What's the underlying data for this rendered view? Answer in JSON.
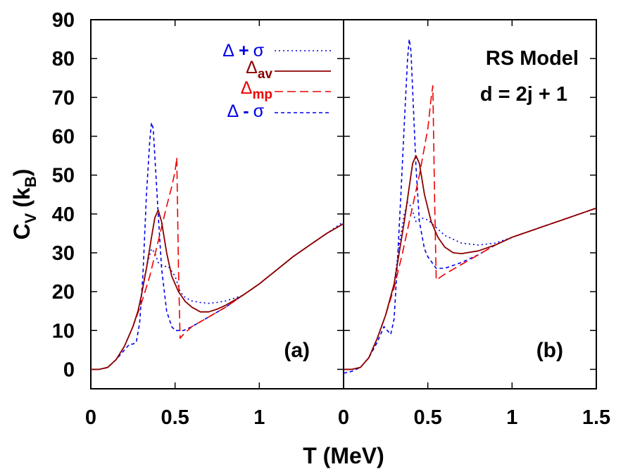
{
  "chart_data": {
    "type": "line",
    "xlabel": "T (MeV)",
    "ylabel_main": "C",
    "ylabel_v_sub": "V",
    "ylabel_paren_open": "(k",
    "ylabel_b_sub": "B",
    "ylabel_paren_close": ")",
    "ylim": [
      -5,
      90
    ],
    "yticks": [
      0,
      10,
      20,
      30,
      40,
      50,
      60,
      70,
      80,
      90
    ],
    "ytick_labels": [
      "0",
      "10",
      "20",
      "30",
      "40",
      "50",
      "60",
      "70",
      "80",
      "90"
    ],
    "panel_a": {
      "label": "(a)",
      "xlim": [
        0,
        1.5
      ],
      "xticks": [
        0,
        0.5,
        1
      ],
      "xtick_labels": [
        "0",
        "0.5",
        "1"
      ]
    },
    "panel_b": {
      "label": "(b)",
      "xlim": [
        0,
        1.5
      ],
      "xticks": [
        0,
        0.5,
        1,
        1.5
      ],
      "xtick_labels": [
        "0",
        "0.5",
        "1",
        "1.5"
      ],
      "annotation_line1": "RS Model",
      "annotation_line2": "d = 2j + 1"
    },
    "legend": [
      {
        "key": "plus",
        "symbol": "Δ",
        "op": "+",
        "tail": "σ",
        "sub": "",
        "color": "#0000e6",
        "dash": "2,4",
        "width": 1.6
      },
      {
        "key": "av",
        "symbol": "Δ",
        "op": "",
        "tail": "",
        "sub": "av",
        "color": "#8b0000",
        "dash": "",
        "width": 1.8
      },
      {
        "key": "mp",
        "symbol": "Δ",
        "op": "",
        "tail": "",
        "sub": "mp",
        "color": "#ee0000",
        "dash": "12,6",
        "width": 1.6
      },
      {
        "key": "minus",
        "symbol": "Δ",
        "op": "-",
        "tail": "σ",
        "sub": "",
        "color": "#0000e6",
        "dash": "5,4",
        "width": 1.6
      }
    ],
    "series": {
      "a": {
        "plus": [
          [
            0,
            0
          ],
          [
            0.05,
            0
          ],
          [
            0.1,
            0.5
          ],
          [
            0.15,
            2.5
          ],
          [
            0.2,
            6
          ],
          [
            0.25,
            11
          ],
          [
            0.28,
            15
          ],
          [
            0.3,
            19
          ],
          [
            0.32,
            24
          ],
          [
            0.34,
            28
          ],
          [
            0.36,
            31
          ],
          [
            0.38,
            30
          ],
          [
            0.4,
            27.5
          ],
          [
            0.43,
            26.5
          ],
          [
            0.46,
            26.5
          ],
          [
            0.5,
            24
          ],
          [
            0.53,
            20
          ],
          [
            0.56,
            18.5
          ],
          [
            0.6,
            17.6
          ],
          [
            0.65,
            17.2
          ],
          [
            0.7,
            17
          ],
          [
            0.75,
            17.2
          ],
          [
            0.8,
            17.6
          ],
          [
            0.9,
            19
          ],
          [
            1.0,
            22
          ],
          [
            1.1,
            25.5
          ],
          [
            1.2,
            29
          ],
          [
            1.3,
            32
          ],
          [
            1.4,
            35
          ],
          [
            1.5,
            38
          ]
        ],
        "av": [
          [
            0,
            0
          ],
          [
            0.05,
            0
          ],
          [
            0.1,
            0.5
          ],
          [
            0.15,
            2.5
          ],
          [
            0.2,
            6
          ],
          [
            0.25,
            11
          ],
          [
            0.28,
            15
          ],
          [
            0.3,
            19
          ],
          [
            0.33,
            26
          ],
          [
            0.36,
            34
          ],
          [
            0.38,
            39
          ],
          [
            0.4,
            41
          ],
          [
            0.42,
            38
          ],
          [
            0.45,
            30
          ],
          [
            0.48,
            24
          ],
          [
            0.52,
            20
          ],
          [
            0.56,
            17.5
          ],
          [
            0.6,
            16
          ],
          [
            0.65,
            14.8
          ],
          [
            0.7,
            14.8
          ],
          [
            0.75,
            15.5
          ],
          [
            0.8,
            16.5
          ],
          [
            0.9,
            19
          ],
          [
            1.0,
            22
          ],
          [
            1.1,
            25.5
          ],
          [
            1.2,
            29
          ],
          [
            1.3,
            32
          ],
          [
            1.4,
            35
          ],
          [
            1.5,
            37.5
          ]
        ],
        "mp": [
          [
            0,
            0
          ],
          [
            0.05,
            0
          ],
          [
            0.1,
            0.5
          ],
          [
            0.15,
            2.5
          ],
          [
            0.2,
            6
          ],
          [
            0.25,
            11
          ],
          [
            0.3,
            17
          ],
          [
            0.35,
            24
          ],
          [
            0.4,
            33
          ],
          [
            0.45,
            42
          ],
          [
            0.48,
            47
          ],
          [
            0.5,
            51
          ],
          [
            0.51,
            54.5
          ],
          [
            0.52,
            26
          ],
          [
            0.53,
            8
          ],
          [
            0.55,
            9
          ],
          [
            0.6,
            11
          ],
          [
            0.7,
            13.5
          ],
          [
            0.8,
            16
          ],
          [
            0.9,
            19
          ],
          [
            1.0,
            22
          ],
          [
            1.1,
            25.5
          ],
          [
            1.2,
            29
          ],
          [
            1.3,
            32
          ],
          [
            1.4,
            35
          ],
          [
            1.5,
            37.5
          ]
        ],
        "minus": [
          [
            0,
            0
          ],
          [
            0.05,
            0
          ],
          [
            0.1,
            0.5
          ],
          [
            0.15,
            2.5
          ],
          [
            0.2,
            5
          ],
          [
            0.23,
            6.5
          ],
          [
            0.25,
            6.5
          ],
          [
            0.27,
            7
          ],
          [
            0.29,
            12
          ],
          [
            0.31,
            25
          ],
          [
            0.33,
            45
          ],
          [
            0.35,
            59
          ],
          [
            0.36,
            63.5
          ],
          [
            0.37,
            62
          ],
          [
            0.38,
            55
          ],
          [
            0.4,
            40
          ],
          [
            0.42,
            26
          ],
          [
            0.45,
            15
          ],
          [
            0.48,
            11
          ],
          [
            0.5,
            10
          ],
          [
            0.55,
            10
          ],
          [
            0.6,
            11
          ],
          [
            0.7,
            13.5
          ],
          [
            0.8,
            16
          ],
          [
            0.9,
            19
          ],
          [
            1.0,
            22
          ],
          [
            1.1,
            25.5
          ],
          [
            1.2,
            29
          ],
          [
            1.3,
            32
          ],
          [
            1.4,
            35
          ],
          [
            1.5,
            37.5
          ]
        ]
      },
      "b": {
        "plus": [
          [
            0,
            0
          ],
          [
            0.05,
            0
          ],
          [
            0.1,
            0.5
          ],
          [
            0.15,
            3
          ],
          [
            0.2,
            8
          ],
          [
            0.25,
            14
          ],
          [
            0.3,
            22
          ],
          [
            0.33,
            32
          ],
          [
            0.36,
            40
          ],
          [
            0.38,
            43
          ],
          [
            0.4,
            42
          ],
          [
            0.43,
            38
          ],
          [
            0.46,
            39
          ],
          [
            0.5,
            38.5
          ],
          [
            0.55,
            36.5
          ],
          [
            0.6,
            34.5
          ],
          [
            0.7,
            32.5
          ],
          [
            0.8,
            32
          ],
          [
            0.9,
            32.5
          ],
          [
            1.0,
            34
          ],
          [
            1.1,
            35.5
          ],
          [
            1.2,
            37
          ],
          [
            1.3,
            38.5
          ],
          [
            1.4,
            40
          ],
          [
            1.5,
            41.5
          ]
        ],
        "av": [
          [
            0,
            0
          ],
          [
            0.05,
            0
          ],
          [
            0.1,
            0.5
          ],
          [
            0.15,
            3
          ],
          [
            0.2,
            8
          ],
          [
            0.25,
            14
          ],
          [
            0.3,
            22
          ],
          [
            0.33,
            30
          ],
          [
            0.36,
            38
          ],
          [
            0.39,
            47
          ],
          [
            0.41,
            53
          ],
          [
            0.43,
            55
          ],
          [
            0.45,
            53
          ],
          [
            0.48,
            45
          ],
          [
            0.52,
            38
          ],
          [
            0.56,
            34
          ],
          [
            0.6,
            31.5
          ],
          [
            0.65,
            30
          ],
          [
            0.7,
            29.8
          ],
          [
            0.8,
            30.5
          ],
          [
            0.9,
            32
          ],
          [
            1.0,
            34
          ],
          [
            1.1,
            35.5
          ],
          [
            1.2,
            37
          ],
          [
            1.3,
            38.5
          ],
          [
            1.4,
            40
          ],
          [
            1.5,
            41.5
          ]
        ],
        "mp": [
          [
            0,
            0
          ],
          [
            0.05,
            0
          ],
          [
            0.1,
            0.5
          ],
          [
            0.15,
            3
          ],
          [
            0.2,
            8
          ],
          [
            0.25,
            14
          ],
          [
            0.3,
            21
          ],
          [
            0.35,
            30
          ],
          [
            0.4,
            40
          ],
          [
            0.45,
            50
          ],
          [
            0.5,
            62
          ],
          [
            0.52,
            70
          ],
          [
            0.53,
            73
          ],
          [
            0.54,
            45
          ],
          [
            0.55,
            23
          ],
          [
            0.6,
            24.5
          ],
          [
            0.7,
            27
          ],
          [
            0.8,
            29.5
          ],
          [
            0.9,
            32
          ],
          [
            1.0,
            34
          ],
          [
            1.1,
            35.5
          ],
          [
            1.2,
            37
          ],
          [
            1.3,
            38.5
          ],
          [
            1.4,
            40
          ],
          [
            1.5,
            41.5
          ]
        ],
        "minus": [
          [
            0,
            -1
          ],
          [
            0.05,
            -0.5
          ],
          [
            0.1,
            0.5
          ],
          [
            0.15,
            3
          ],
          [
            0.2,
            7
          ],
          [
            0.24,
            11
          ],
          [
            0.26,
            10
          ],
          [
            0.28,
            9
          ],
          [
            0.3,
            13
          ],
          [
            0.32,
            28
          ],
          [
            0.34,
            45
          ],
          [
            0.36,
            63
          ],
          [
            0.38,
            80
          ],
          [
            0.39,
            85
          ],
          [
            0.4,
            82
          ],
          [
            0.41,
            72
          ],
          [
            0.43,
            52
          ],
          [
            0.45,
            38
          ],
          [
            0.48,
            31
          ],
          [
            0.5,
            29
          ],
          [
            0.55,
            26
          ],
          [
            0.6,
            26
          ],
          [
            0.7,
            27.5
          ],
          [
            0.8,
            29.5
          ],
          [
            0.9,
            32
          ],
          [
            1.0,
            34
          ],
          [
            1.1,
            35.5
          ],
          [
            1.2,
            37
          ],
          [
            1.3,
            38.5
          ],
          [
            1.4,
            40
          ],
          [
            1.5,
            41.5
          ]
        ]
      }
    }
  }
}
